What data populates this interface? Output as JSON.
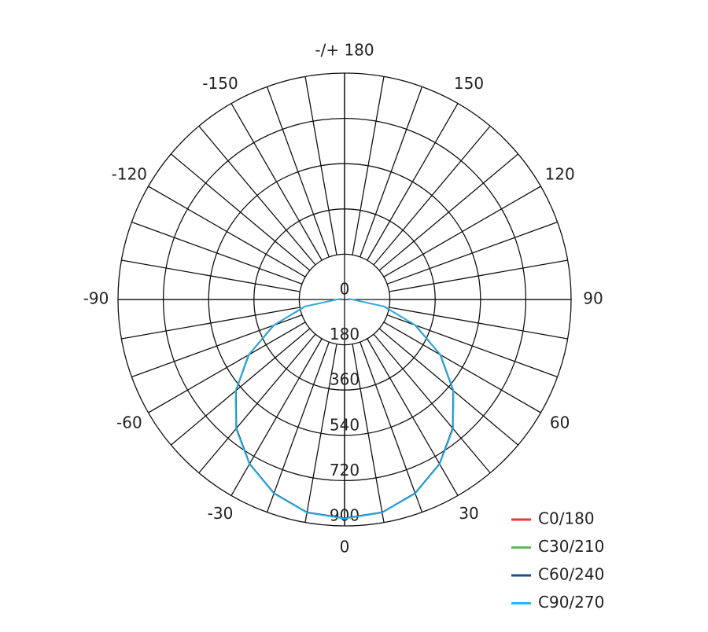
{
  "chart_data": {
    "type": "polar",
    "theta": [
      -100,
      -90,
      -80,
      -70,
      -60,
      -50,
      -40,
      -30,
      -20,
      -10,
      0,
      10,
      20,
      30,
      40,
      50,
      60,
      70,
      80,
      90,
      100
    ],
    "series": [
      {
        "name": "C0/180",
        "color": "#e53935",
        "values": [
          15,
          30,
          160,
          300,
          440,
          565,
          670,
          755,
          820,
          860,
          870,
          860,
          820,
          755,
          670,
          565,
          440,
          300,
          160,
          30,
          15
        ]
      },
      {
        "name": "C30/210",
        "color": "#5cb85c",
        "values": [
          16,
          32,
          162,
          302,
          442,
          566,
          671,
          756,
          821,
          861,
          872,
          861,
          821,
          756,
          671,
          566,
          442,
          302,
          162,
          32,
          16
        ]
      },
      {
        "name": "C60/240",
        "color": "#1a4f8a",
        "values": [
          14,
          29,
          158,
          298,
          438,
          563,
          668,
          754,
          819,
          859,
          869,
          859,
          819,
          754,
          668,
          563,
          438,
          298,
          158,
          29,
          14
        ]
      },
      {
        "name": "C90/270",
        "color": "#29b6e8",
        "values": [
          15,
          31,
          161,
          301,
          441,
          566,
          671,
          756,
          821,
          861,
          871,
          861,
          821,
          756,
          671,
          566,
          441,
          301,
          161,
          31,
          15
        ]
      }
    ],
    "rlim": [
      0,
      900
    ],
    "rticks": [
      0,
      180,
      360,
      540,
      720,
      900
    ],
    "thetaticks": [
      0,
      30,
      60,
      90,
      120,
      150,
      {
        "value": 180,
        "label": "-/+ 180"
      },
      -150,
      -120,
      -90,
      -60,
      -30
    ],
    "thetagrid_step": 10,
    "grid": true,
    "legend": "lower right"
  }
}
